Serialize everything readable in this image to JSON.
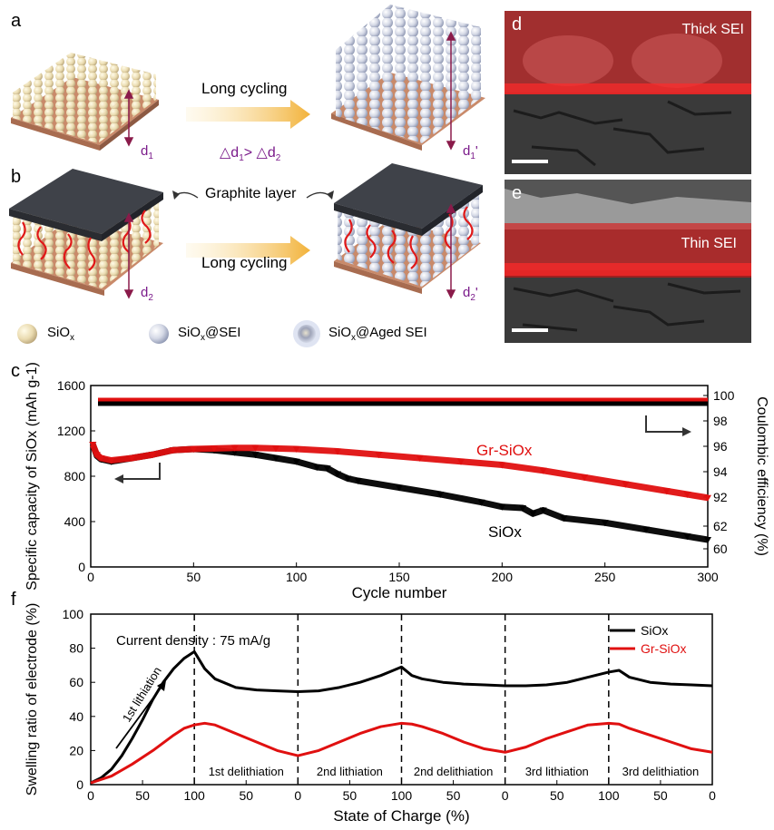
{
  "panels": {
    "a": "a",
    "b": "b",
    "c": "c",
    "d": "d",
    "e": "e",
    "f": "f"
  },
  "schematic": {
    "long_cycling_top": "Long cycling",
    "long_cycling_bottom": "Long cycling",
    "delta": "△d",
    "delta_sub1": "1",
    "gt": "> △d",
    "delta_sub2": "2",
    "graphite_layer": "Graphite layer",
    "d1": "d",
    "d1_sub": "1",
    "d1p": "d",
    "d1p_sub": "1",
    "d1p_prime": "'",
    "d2": "d",
    "d2_sub": "2",
    "d2p": "d",
    "d2p_sub": "2",
    "d2p_prime": "'"
  },
  "legend_particles": {
    "sio": "SiO",
    "sio_sub": "x",
    "sio_sei": "SiO",
    "sio_sei_sub": "x",
    "sio_sei_suffix": "@SEI",
    "sio_aged": "SiO",
    "sio_aged_sub": "x",
    "sio_aged_suffix": "@Aged SEI"
  },
  "sem_images": {
    "d_label": "Thick SEI",
    "e_label": "Thin SEI",
    "colors": {
      "sei": "#e01010",
      "bg": "#6b6b6b"
    }
  },
  "chart_data": [
    {
      "type": "scatter",
      "panel": "c",
      "xlabel": "Cycle number",
      "ylabel_left": "Specific capacity of SiOx (mAh g-1)",
      "ylabel_right": "Coulombic efficiency (%)",
      "xlim": [
        0,
        300
      ],
      "ylim_left": [
        0,
        1600
      ],
      "xticks": [
        "0",
        "50",
        "100",
        "150",
        "200",
        "250",
        "300"
      ],
      "yticks_left": [
        "0",
        "400",
        "800",
        "1200",
        "1600"
      ],
      "yticks_right": [
        "60",
        "62",
        "92",
        "94",
        "96",
        "98",
        "100"
      ],
      "series": [
        {
          "name": "SiOx",
          "color": "#000000",
          "x": [
            1,
            3,
            5,
            10,
            20,
            30,
            40,
            50,
            60,
            70,
            80,
            90,
            100,
            110,
            115,
            120,
            125,
            130,
            150,
            170,
            190,
            200,
            210,
            215,
            220,
            230,
            250,
            270,
            290,
            300
          ],
          "y": [
            1080,
            980,
            950,
            930,
            960,
            990,
            1030,
            1040,
            1030,
            1010,
            990,
            960,
            930,
            880,
            870,
            820,
            780,
            760,
            700,
            640,
            570,
            530,
            520,
            470,
            500,
            430,
            390,
            330,
            270,
            240
          ]
        },
        {
          "name": "Gr-SiOx",
          "color": "#e01010",
          "x": [
            1,
            3,
            5,
            10,
            20,
            30,
            40,
            50,
            60,
            70,
            80,
            90,
            100,
            120,
            140,
            160,
            180,
            200,
            220,
            240,
            260,
            280,
            290,
            300
          ],
          "y": [
            1080,
            990,
            960,
            940,
            960,
            990,
            1030,
            1040,
            1045,
            1050,
            1050,
            1045,
            1040,
            1020,
            990,
            960,
            930,
            900,
            850,
            790,
            730,
            670,
            640,
            610
          ]
        }
      ],
      "annotations": [
        "Gr-SiOx",
        "SiOx"
      ]
    },
    {
      "type": "line",
      "panel": "f",
      "xlabel": "State of Charge (%)",
      "ylabel": "Swelling ratio of electrode (%)",
      "ylim": [
        0,
        100
      ],
      "x_tick_labels": [
        "0",
        "50",
        "100",
        "50",
        "0",
        "50",
        "100",
        "50",
        "0",
        "50",
        "100",
        "50",
        "0"
      ],
      "yticks": [
        "0",
        "20",
        "40",
        "60",
        "80",
        "100"
      ],
      "annotation": "Current density : 75 mA/g",
      "segments": [
        "1st lithiation",
        "1st delithiation",
        "2nd lithiation",
        "2nd delithiation",
        "3rd lithiation",
        "3rd delithiation"
      ],
      "series": [
        {
          "name": "SiOx",
          "color": "#000000",
          "x": [
            0,
            10,
            20,
            30,
            40,
            50,
            60,
            70,
            80,
            90,
            100,
            110,
            120,
            140,
            160,
            180,
            200,
            220,
            240,
            260,
            280,
            290,
            300,
            310,
            320,
            340,
            360,
            380,
            400,
            420,
            440,
            460,
            480,
            500,
            510,
            520,
            540,
            560,
            580,
            600
          ],
          "y": [
            1,
            4,
            9,
            17,
            27,
            38,
            50,
            60,
            68,
            74,
            78,
            68,
            62,
            57,
            55.5,
            55,
            54.5,
            55,
            57,
            60,
            64,
            66.5,
            69,
            64,
            62,
            60,
            59,
            58.5,
            58,
            58,
            58.5,
            60,
            63,
            66,
            67,
            63,
            60,
            59,
            58.5,
            58
          ]
        },
        {
          "name": "Gr-SiOx",
          "color": "#e01010",
          "x": [
            0,
            20,
            40,
            60,
            80,
            90,
            100,
            110,
            120,
            140,
            160,
            180,
            200,
            220,
            240,
            260,
            280,
            300,
            310,
            320,
            340,
            360,
            380,
            400,
            420,
            440,
            460,
            480,
            500,
            510,
            520,
            540,
            560,
            580,
            600
          ],
          "y": [
            1,
            5,
            12,
            20,
            29,
            33,
            35,
            36,
            35,
            30,
            25,
            20,
            17,
            20,
            25,
            30,
            34,
            36,
            35.5,
            34,
            30,
            25,
            21,
            19,
            22,
            27,
            31,
            35,
            36,
            35.5,
            33,
            29,
            25,
            21,
            19
          ]
        }
      ],
      "legend": [
        "SiOx",
        "Gr-SiOx"
      ]
    }
  ]
}
